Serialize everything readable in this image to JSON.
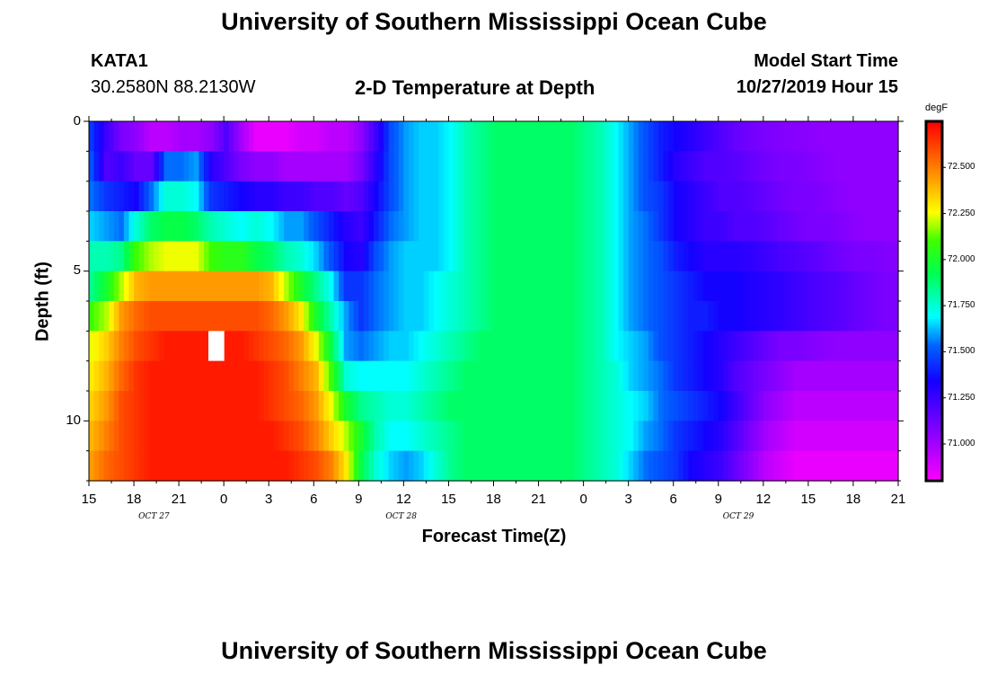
{
  "header": {
    "title": "University of Southern Mississippi Ocean Cube",
    "station_id": "KATA1",
    "coordinates": "30.2580N 88.2130W",
    "plot_title": "2-D Temperature at Depth",
    "model_label": "Model Start Time",
    "model_time": "10/27/2019 Hour 15"
  },
  "footer": {
    "title": "University of Southern Mississippi Ocean Cube"
  },
  "chart_data": {
    "type": "heatmap",
    "title": "2-D Temperature at Depth",
    "xlabel": "Forecast Time(Z)",
    "ylabel": "Depth (ft)",
    "x_tick_labels": [
      "15",
      "18",
      "21",
      "0",
      "3",
      "6",
      "9",
      "12",
      "15",
      "18",
      "21",
      "0",
      "3",
      "6",
      "9",
      "12",
      "15",
      "18",
      "21"
    ],
    "date_labels": [
      {
        "label": "OCT 27",
        "hour_index": 4.5
      },
      {
        "label": "OCT 28",
        "hour_index": 21
      },
      {
        "label": "OCT 29",
        "hour_index": 43.5
      }
    ],
    "x_range_hours": [
      0,
      54
    ],
    "y_ticks": [
      0,
      5,
      10
    ],
    "y_range_ft": [
      0,
      12
    ],
    "colorbar": {
      "unit": "degF",
      "range": [
        70.8,
        72.75
      ],
      "ticks": [
        "72.500",
        "72.250",
        "72.000",
        "71.750",
        "71.500",
        "71.250",
        "71.000"
      ],
      "tick_values": [
        72.5,
        72.25,
        72.0,
        71.75,
        71.5,
        71.25,
        71.0
      ]
    },
    "depth_levels_ft": [
      0.5,
      1.5,
      2.5,
      3.5,
      4.5,
      5.5,
      6.5,
      7.5,
      8.5,
      9.5,
      10.5,
      11.5
    ],
    "time_columns_hours": [
      0,
      1,
      2,
      3,
      4,
      5,
      6,
      7,
      8,
      9,
      10,
      11,
      12,
      13,
      14,
      15,
      16,
      17,
      18,
      19,
      20,
      21,
      22,
      23,
      24,
      25,
      26,
      27,
      28,
      29,
      30,
      31,
      32,
      33,
      34,
      35,
      36,
      37,
      38,
      39,
      40,
      41,
      42,
      43,
      44,
      45,
      46,
      47,
      48,
      49,
      50,
      51,
      52,
      53
    ],
    "values_degF": [
      [
        71.45,
        71.25,
        71.1,
        71.05,
        70.95,
        70.95,
        71.0,
        71.0,
        71.05,
        71.2,
        71.0,
        70.85,
        70.85,
        70.85,
        70.9,
        70.9,
        70.95,
        70.95,
        71.05,
        71.25,
        71.5,
        71.6,
        71.65,
        71.65,
        71.7,
        71.8,
        71.85,
        71.9,
        71.9,
        71.9,
        71.9,
        71.9,
        71.9,
        71.85,
        71.8,
        71.7,
        71.6,
        71.5,
        71.4,
        71.35,
        71.3,
        71.25,
        71.2,
        71.15,
        71.12,
        71.1,
        71.08,
        71.07,
        71.06,
        71.05,
        71.05,
        71.05,
        71.05,
        71.05
      ],
      [
        71.5,
        71.2,
        71.25,
        71.15,
        71.15,
        71.55,
        71.55,
        71.6,
        71.3,
        71.2,
        71.1,
        71.05,
        71.05,
        71.0,
        71.0,
        71.0,
        71.0,
        71.0,
        71.1,
        71.3,
        71.5,
        71.6,
        71.65,
        71.65,
        71.7,
        71.8,
        71.85,
        71.9,
        71.9,
        71.9,
        71.9,
        71.9,
        71.9,
        71.85,
        71.8,
        71.7,
        71.6,
        71.5,
        71.4,
        71.3,
        71.25,
        71.2,
        71.2,
        71.18,
        71.15,
        71.12,
        71.1,
        71.1,
        71.08,
        71.06,
        71.05,
        71.05,
        71.05,
        71.05
      ],
      [
        71.55,
        71.45,
        71.4,
        71.35,
        71.55,
        71.75,
        71.75,
        71.7,
        71.45,
        71.4,
        71.35,
        71.3,
        71.3,
        71.25,
        71.25,
        71.2,
        71.2,
        71.15,
        71.2,
        71.35,
        71.5,
        71.6,
        71.65,
        71.65,
        71.7,
        71.8,
        71.85,
        71.9,
        71.9,
        71.9,
        71.9,
        71.9,
        71.9,
        71.85,
        71.8,
        71.7,
        71.6,
        71.5,
        71.45,
        71.35,
        71.3,
        71.25,
        71.2,
        71.2,
        71.18,
        71.15,
        71.12,
        71.1,
        71.1,
        71.08,
        71.06,
        71.05,
        71.05,
        71.05
      ],
      [
        71.65,
        71.6,
        71.55,
        71.75,
        71.9,
        71.95,
        71.95,
        71.9,
        71.8,
        71.75,
        71.7,
        71.75,
        71.7,
        71.6,
        71.6,
        71.5,
        71.4,
        71.3,
        71.25,
        71.4,
        71.55,
        71.6,
        71.65,
        71.65,
        71.7,
        71.8,
        71.85,
        71.9,
        71.9,
        71.9,
        71.9,
        71.9,
        71.9,
        71.85,
        71.8,
        71.7,
        71.6,
        71.55,
        71.45,
        71.35,
        71.3,
        71.25,
        71.25,
        71.2,
        71.2,
        71.18,
        71.15,
        71.12,
        71.1,
        71.1,
        71.08,
        71.06,
        71.05,
        71.05
      ],
      [
        71.8,
        71.8,
        71.85,
        72.1,
        72.2,
        72.25,
        72.25,
        72.25,
        72.1,
        72.05,
        72.05,
        71.95,
        71.9,
        71.8,
        71.75,
        71.65,
        71.5,
        71.35,
        71.3,
        71.5,
        71.6,
        71.65,
        71.65,
        71.65,
        71.7,
        71.8,
        71.85,
        71.9,
        71.9,
        71.9,
        71.9,
        71.9,
        71.9,
        71.85,
        71.8,
        71.7,
        71.6,
        71.55,
        71.5,
        71.4,
        71.35,
        71.3,
        71.3,
        71.3,
        71.28,
        71.25,
        71.22,
        71.2,
        71.18,
        71.15,
        71.12,
        71.1,
        71.1,
        71.08
      ],
      [
        71.85,
        72.0,
        72.2,
        72.4,
        72.45,
        72.45,
        72.45,
        72.45,
        72.45,
        72.45,
        72.45,
        72.45,
        72.4,
        72.2,
        72.0,
        71.85,
        71.7,
        71.45,
        71.45,
        71.55,
        71.6,
        71.65,
        71.65,
        71.7,
        71.75,
        71.8,
        71.85,
        71.9,
        71.9,
        71.9,
        71.9,
        71.9,
        71.9,
        71.85,
        71.8,
        71.7,
        71.6,
        71.55,
        71.5,
        71.45,
        71.4,
        71.35,
        71.35,
        71.35,
        71.32,
        71.3,
        71.28,
        71.25,
        71.22,
        71.2,
        71.18,
        71.15,
        71.12,
        71.1
      ],
      [
        72.1,
        72.2,
        72.45,
        72.55,
        72.6,
        72.6,
        72.6,
        72.6,
        72.6,
        72.6,
        72.6,
        72.6,
        72.55,
        72.45,
        72.3,
        72.0,
        71.8,
        71.6,
        71.45,
        71.55,
        71.6,
        71.65,
        71.65,
        71.7,
        71.75,
        71.8,
        71.85,
        71.9,
        71.9,
        71.9,
        71.9,
        71.9,
        71.9,
        71.85,
        71.8,
        71.7,
        71.6,
        71.55,
        71.5,
        71.45,
        71.4,
        71.4,
        71.35,
        71.35,
        71.32,
        71.3,
        71.28,
        71.25,
        71.22,
        71.2,
        71.18,
        71.15,
        71.12,
        71.1
      ],
      [
        72.25,
        72.35,
        72.5,
        72.6,
        72.65,
        72.7,
        72.7,
        72.7,
        72.7,
        72.7,
        72.7,
        72.65,
        72.6,
        72.55,
        72.45,
        72.25,
        71.95,
        71.6,
        71.55,
        71.6,
        71.65,
        71.65,
        71.7,
        71.75,
        71.8,
        71.85,
        71.9,
        71.9,
        71.9,
        71.9,
        71.9,
        71.9,
        71.9,
        71.85,
        71.8,
        71.7,
        71.65,
        71.6,
        71.5,
        71.45,
        71.4,
        71.35,
        71.3,
        71.25,
        71.2,
        71.15,
        71.1,
        71.1,
        71.08,
        71.06,
        71.05,
        71.05,
        71.05,
        71.05
      ],
      [
        72.3,
        72.4,
        72.55,
        72.65,
        72.7,
        72.7,
        72.7,
        72.7,
        72.7,
        72.7,
        72.7,
        72.7,
        72.65,
        72.6,
        72.5,
        72.4,
        72.1,
        71.75,
        71.7,
        71.7,
        71.7,
        71.7,
        71.75,
        71.8,
        71.85,
        71.9,
        71.9,
        71.9,
        71.9,
        71.9,
        71.9,
        71.9,
        71.9,
        71.85,
        71.8,
        71.75,
        71.65,
        71.6,
        71.55,
        71.45,
        71.4,
        71.35,
        71.3,
        71.2,
        71.15,
        71.1,
        71.05,
        71.0,
        71.0,
        71.0,
        71.0,
        71.0,
        71.0,
        71.0
      ],
      [
        72.35,
        72.45,
        72.6,
        72.65,
        72.7,
        72.7,
        72.7,
        72.7,
        72.7,
        72.7,
        72.7,
        72.7,
        72.65,
        72.6,
        72.55,
        72.45,
        72.25,
        72.0,
        71.85,
        71.8,
        71.75,
        71.75,
        71.8,
        71.85,
        71.9,
        71.9,
        71.9,
        71.9,
        71.9,
        71.9,
        71.9,
        71.9,
        71.9,
        71.85,
        71.8,
        71.75,
        71.7,
        71.65,
        71.55,
        71.5,
        71.45,
        71.4,
        71.35,
        71.25,
        71.15,
        71.05,
        71.0,
        70.95,
        70.95,
        70.95,
        70.95,
        70.95,
        70.95,
        70.95
      ],
      [
        72.4,
        72.5,
        72.6,
        72.65,
        72.7,
        72.7,
        72.7,
        72.7,
        72.7,
        72.7,
        72.7,
        72.7,
        72.7,
        72.65,
        72.6,
        72.5,
        72.35,
        72.2,
        72.0,
        71.8,
        71.7,
        71.7,
        71.75,
        71.8,
        71.85,
        71.9,
        71.9,
        71.9,
        71.9,
        71.9,
        71.9,
        71.9,
        71.9,
        71.85,
        71.8,
        71.75,
        71.7,
        71.6,
        71.55,
        71.45,
        71.4,
        71.35,
        71.3,
        71.2,
        71.1,
        71.0,
        70.95,
        70.9,
        70.9,
        70.9,
        70.9,
        70.9,
        70.9,
        70.9
      ],
      [
        72.45,
        72.55,
        72.6,
        72.65,
        72.7,
        72.7,
        72.7,
        72.7,
        72.7,
        72.7,
        72.7,
        72.7,
        72.7,
        72.7,
        72.65,
        72.6,
        72.5,
        72.3,
        71.95,
        71.75,
        71.65,
        71.6,
        71.65,
        71.75,
        71.85,
        71.9,
        71.9,
        71.9,
        71.9,
        71.9,
        71.9,
        71.9,
        71.9,
        71.85,
        71.8,
        71.75,
        71.65,
        71.55,
        71.5,
        71.45,
        71.35,
        71.3,
        71.25,
        71.15,
        71.05,
        70.95,
        70.9,
        70.85,
        70.85,
        70.85,
        70.85,
        70.85,
        70.85,
        70.85
      ]
    ],
    "missing_cells": [
      {
        "hour": 8,
        "depth_ft": 7.5
      }
    ]
  }
}
